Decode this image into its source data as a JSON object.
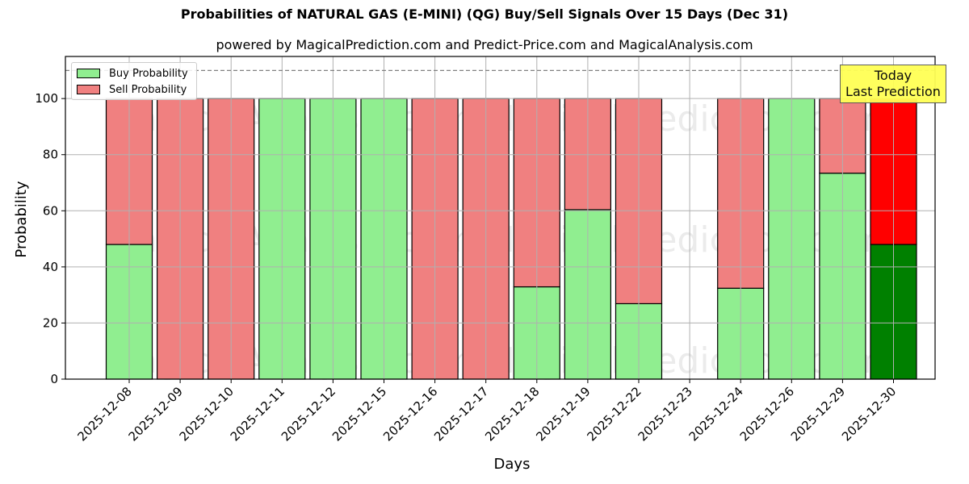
{
  "header": {
    "title": "Probabilities of NATURAL GAS (E-MINI) (QG) Buy/Sell Signals Over 15 Days (Dec 31)",
    "subtitle": "powered by MagicalPrediction.com and Predict-Price.com and MagicalAnalysis.com"
  },
  "legend": {
    "buy_label": "Buy Probability",
    "sell_label": "Sell Probability"
  },
  "annotation": {
    "line1": "Today",
    "line2": "Last Prediction"
  },
  "watermarks": [
    "MagicalAnalysis.com",
    "MagicalPrediction.com"
  ],
  "colors": {
    "buy": "#90ee90",
    "sell": "#f08080",
    "today_buy": "#008000",
    "today_sell": "#ff0000",
    "annotation_bg": "#ffff55",
    "grid": "#b0b0b0"
  },
  "chart_data": {
    "type": "bar",
    "stacked": true,
    "title": "Probabilities of NATURAL GAS (E-MINI) (QG) Buy/Sell Signals Over 15 Days (Dec 31)",
    "subtitle": "powered by MagicalPrediction.com and Predict-Price.com and MagicalAnalysis.com",
    "xlabel": "Days",
    "ylabel": "Probability",
    "ylim": [
      0,
      115
    ],
    "yticks": [
      0,
      20,
      40,
      60,
      80,
      100
    ],
    "grid": true,
    "legend_position": "upper left",
    "reference_line": {
      "y": 110,
      "style": "dashed",
      "color": "#808080"
    },
    "categories": [
      "2025-12-08",
      "2025-12-09",
      "2025-12-10",
      "2025-12-11",
      "2025-12-12",
      "2025-12-15",
      "2025-12-16",
      "2025-12-17",
      "2025-12-18",
      "2025-12-19",
      "2025-12-22",
      "2025-12-23",
      "2025-12-24",
      "2025-12-26",
      "2025-12-29",
      "2025-12-30"
    ],
    "series": [
      {
        "name": "Buy Probability",
        "values": [
          48.0,
          0,
          0,
          100,
          100,
          100,
          0,
          0,
          32.9,
          60.4,
          26.9,
          null,
          32.4,
          100,
          73.4,
          48.0
        ]
      },
      {
        "name": "Sell Probability",
        "values": [
          52.0,
          100,
          100,
          0,
          0,
          0,
          100,
          100,
          67.1,
          39.6,
          73.1,
          null,
          67.6,
          0,
          26.6,
          52.0
        ]
      }
    ],
    "highlight": {
      "category": "2025-12-30",
      "label": "Today\nLast Prediction"
    }
  }
}
